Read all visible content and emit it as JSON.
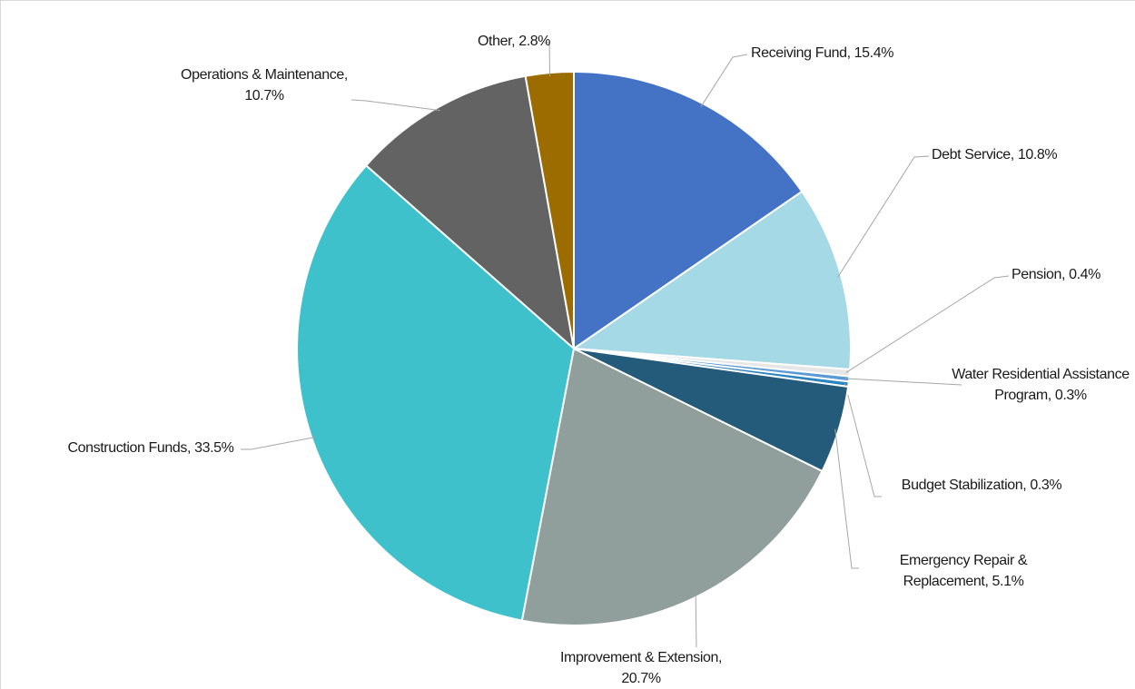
{
  "chart_data": {
    "type": "pie",
    "categories": [
      "Receiving Fund",
      "Debt Service",
      "Pension",
      "Water Residential Assistance Program",
      "Budget Stabilization",
      "Emergency Repair & Replacement",
      "Improvement & Extension",
      "Construction Funds",
      "Operations & Maintenance",
      "Other"
    ],
    "values": [
      15.4,
      10.8,
      0.4,
      0.3,
      0.3,
      5.1,
      20.7,
      33.5,
      10.7,
      2.8
    ],
    "value_labels": [
      "15.4%",
      "10.8%",
      "0.4%",
      "0.3%",
      "0.3%",
      "5.1%",
      "20.7%",
      "33.5%",
      "10.7%",
      "2.8%"
    ],
    "colors": [
      "#4472c4",
      "#a5d9e6",
      "#e6e6e6",
      "#5b9bd5",
      "#2e86c1",
      "#245a7a",
      "#909e9c",
      "#3fc1cc",
      "#636363",
      "#9c6c00"
    ]
  }
}
